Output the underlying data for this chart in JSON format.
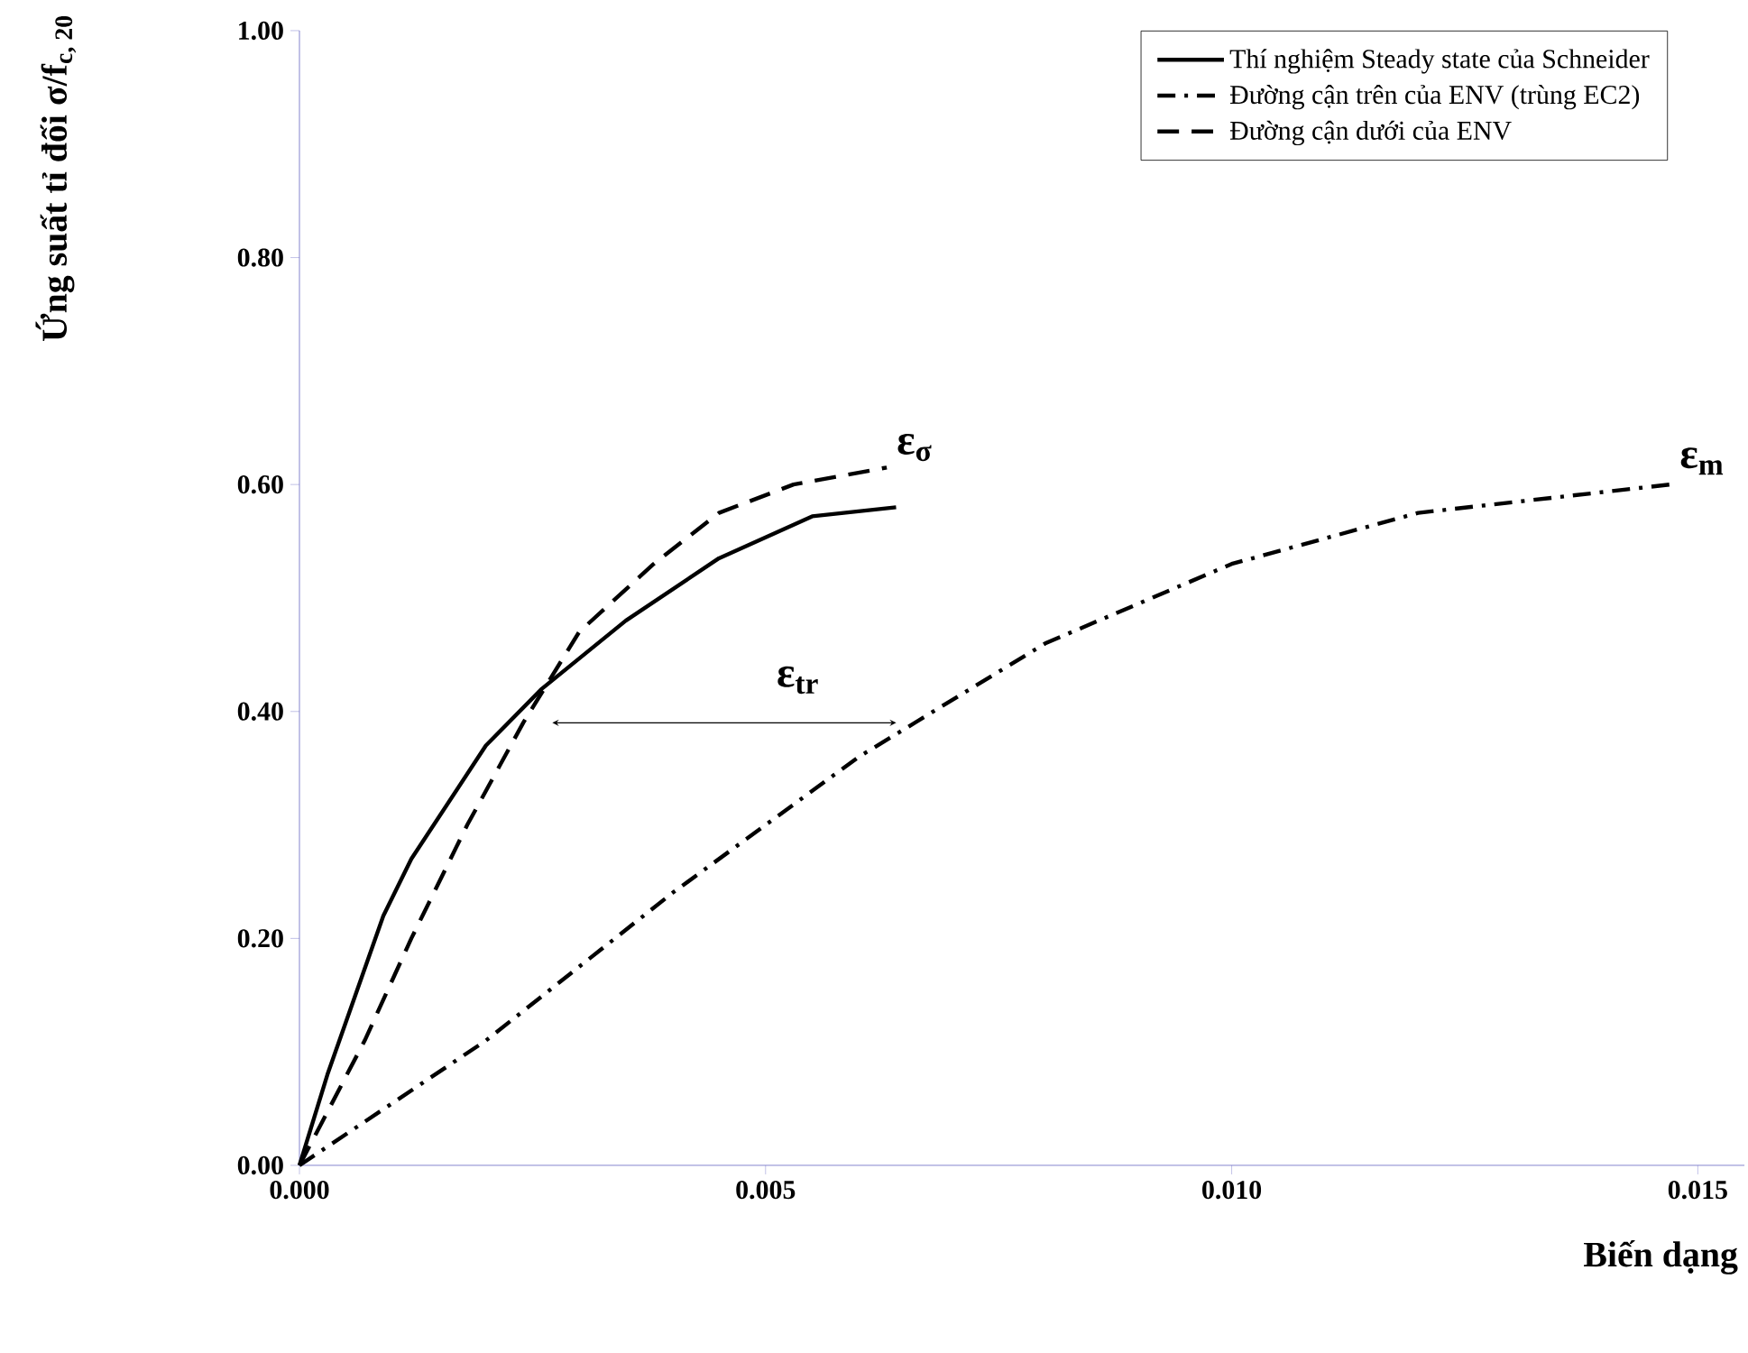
{
  "chart_data": {
    "type": "line",
    "xlabel": "Biến dạng",
    "ylabel": "Ứng suất tỉ đối  σ/f$_{c, 20}$",
    "xlim": [
      0,
      0.0155
    ],
    "ylim": [
      0,
      1.0
    ],
    "xticks": [
      {
        "value": 0,
        "label": "0.000"
      },
      {
        "value": 0.005,
        "label": "0.005"
      },
      {
        "value": 0.01,
        "label": "0.010"
      },
      {
        "value": 0.015,
        "label": "0.015"
      }
    ],
    "yticks": [
      {
        "value": 0,
        "label": "0.00"
      },
      {
        "value": 0.2,
        "label": "0.20"
      },
      {
        "value": 0.4,
        "label": "0.40"
      },
      {
        "value": 0.6,
        "label": "0.60"
      },
      {
        "value": 0.8,
        "label": "0.80"
      },
      {
        "value": 1.0,
        "label": "1.00"
      }
    ],
    "grid": false,
    "legend": "top right",
    "marker": "none",
    "series": [
      {
        "name": "Thí nghiệm  Steady state của Schneider",
        "color": "#000000",
        "line_style": "solid",
        "x": [
          0,
          0.0003,
          0.0006,
          0.0009,
          0.0012,
          0.0016,
          0.002,
          0.0026,
          0.0035,
          0.0045,
          0.0055,
          0.0064
        ],
        "values": [
          0,
          0.08,
          0.15,
          0.22,
          0.27,
          0.32,
          0.37,
          0.42,
          0.48,
          0.535,
          0.572,
          0.58
        ]
      },
      {
        "name": "Đường cận trên của ENV (trùng EC2)",
        "color": "#000000",
        "line_style": "dashdot",
        "x": [
          0,
          0.002,
          0.004,
          0.006,
          0.008,
          0.01,
          0.012,
          0.0147
        ],
        "values": [
          0,
          0.11,
          0.24,
          0.36,
          0.46,
          0.53,
          0.575,
          0.6
        ]
      },
      {
        "name": "Đường cận dưới của ENV",
        "color": "#000000",
        "line_style": "dashed",
        "x": [
          0,
          0.0007,
          0.0012,
          0.0018,
          0.0024,
          0.003,
          0.0038,
          0.0045,
          0.0053,
          0.0063
        ],
        "values": [
          0,
          0.11,
          0.2,
          0.3,
          0.39,
          0.47,
          0.53,
          0.575,
          0.6,
          0.615
        ]
      }
    ],
    "annotations": [
      {
        "text": "ε$_{σ}$",
        "x": 0.0063,
        "y": 0.615
      },
      {
        "text": "ε$_{m}$",
        "x": 0.0147,
        "y": 0.6
      },
      "ε$_{tr}$"
    ]
  }
}
